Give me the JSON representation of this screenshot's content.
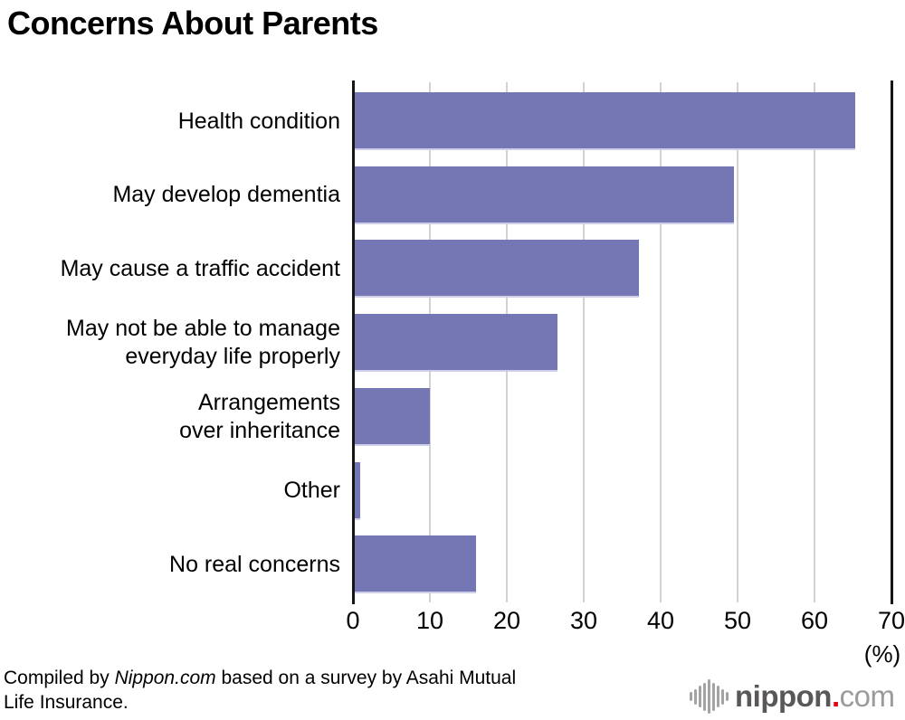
{
  "title": "Concerns About Parents",
  "chart_data": {
    "type": "bar",
    "orientation": "horizontal",
    "title": "Concerns About Parents",
    "categories": [
      "Health condition",
      "May develop dementia",
      "May cause a traffic accident",
      "May not be able to manage\neveryday life properly",
      "Arrangements\nover inheritance",
      "Other",
      "No real concerns"
    ],
    "values": [
      65.1,
      49.3,
      36.9,
      26.4,
      9.8,
      0.7,
      15.8
    ],
    "xlim": [
      0,
      70
    ],
    "xticks": [
      0,
      10,
      20,
      30,
      40,
      50,
      60,
      70
    ],
    "unit_label": "(%)",
    "grid": true,
    "legend_position": "none",
    "bar_color": "#7577b4",
    "gridline_color": "#d2d2d2",
    "axis_line_color": "#151515"
  },
  "footer": {
    "credit_prefix": "Compiled by ",
    "credit_source": "Nippon.com",
    "credit_suffix": " based on a survey by Asahi Mutual Life Insurance."
  },
  "logo": {
    "name_bold": "nippon",
    "dot": ".",
    "name_light": "com",
    "bold_color": "#595757",
    "dot_color": "#e60012",
    "light_color": "#9b9b9b",
    "icon_color": "#a3a3a3"
  }
}
